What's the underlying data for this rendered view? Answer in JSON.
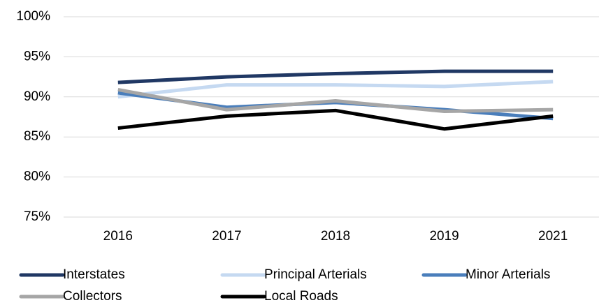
{
  "chart_data": {
    "type": "line",
    "categories": [
      "2016",
      "2017",
      "2018",
      "2019",
      "2021"
    ],
    "series": [
      {
        "name": "Interstates",
        "color": "#203864",
        "values": [
          91.8,
          92.5,
          92.9,
          93.2,
          93.2
        ]
      },
      {
        "name": "Principal Arterials",
        "color": "#c5d9f1",
        "values": [
          90.0,
          91.5,
          91.5,
          91.3,
          91.9
        ]
      },
      {
        "name": "Minor Arterials",
        "color": "#4a7ebb",
        "values": [
          90.5,
          88.7,
          89.3,
          88.4,
          87.3
        ]
      },
      {
        "name": "Collectors",
        "color": "#a6a6a6",
        "values": [
          90.9,
          88.4,
          89.5,
          88.2,
          88.4
        ]
      },
      {
        "name": "Local Roads",
        "color": "#000000",
        "values": [
          86.1,
          87.6,
          88.3,
          86.0,
          87.6
        ]
      }
    ],
    "ylim": [
      75,
      100
    ],
    "yticks": [
      {
        "value": 75,
        "label": "75%"
      },
      {
        "value": 80,
        "label": "80%"
      },
      {
        "value": 85,
        "label": "85%"
      },
      {
        "value": 90,
        "label": "90%"
      },
      {
        "value": 95,
        "label": "95%"
      },
      {
        "value": 100,
        "label": "100%"
      }
    ],
    "grid": true,
    "legend": "bottom"
  }
}
